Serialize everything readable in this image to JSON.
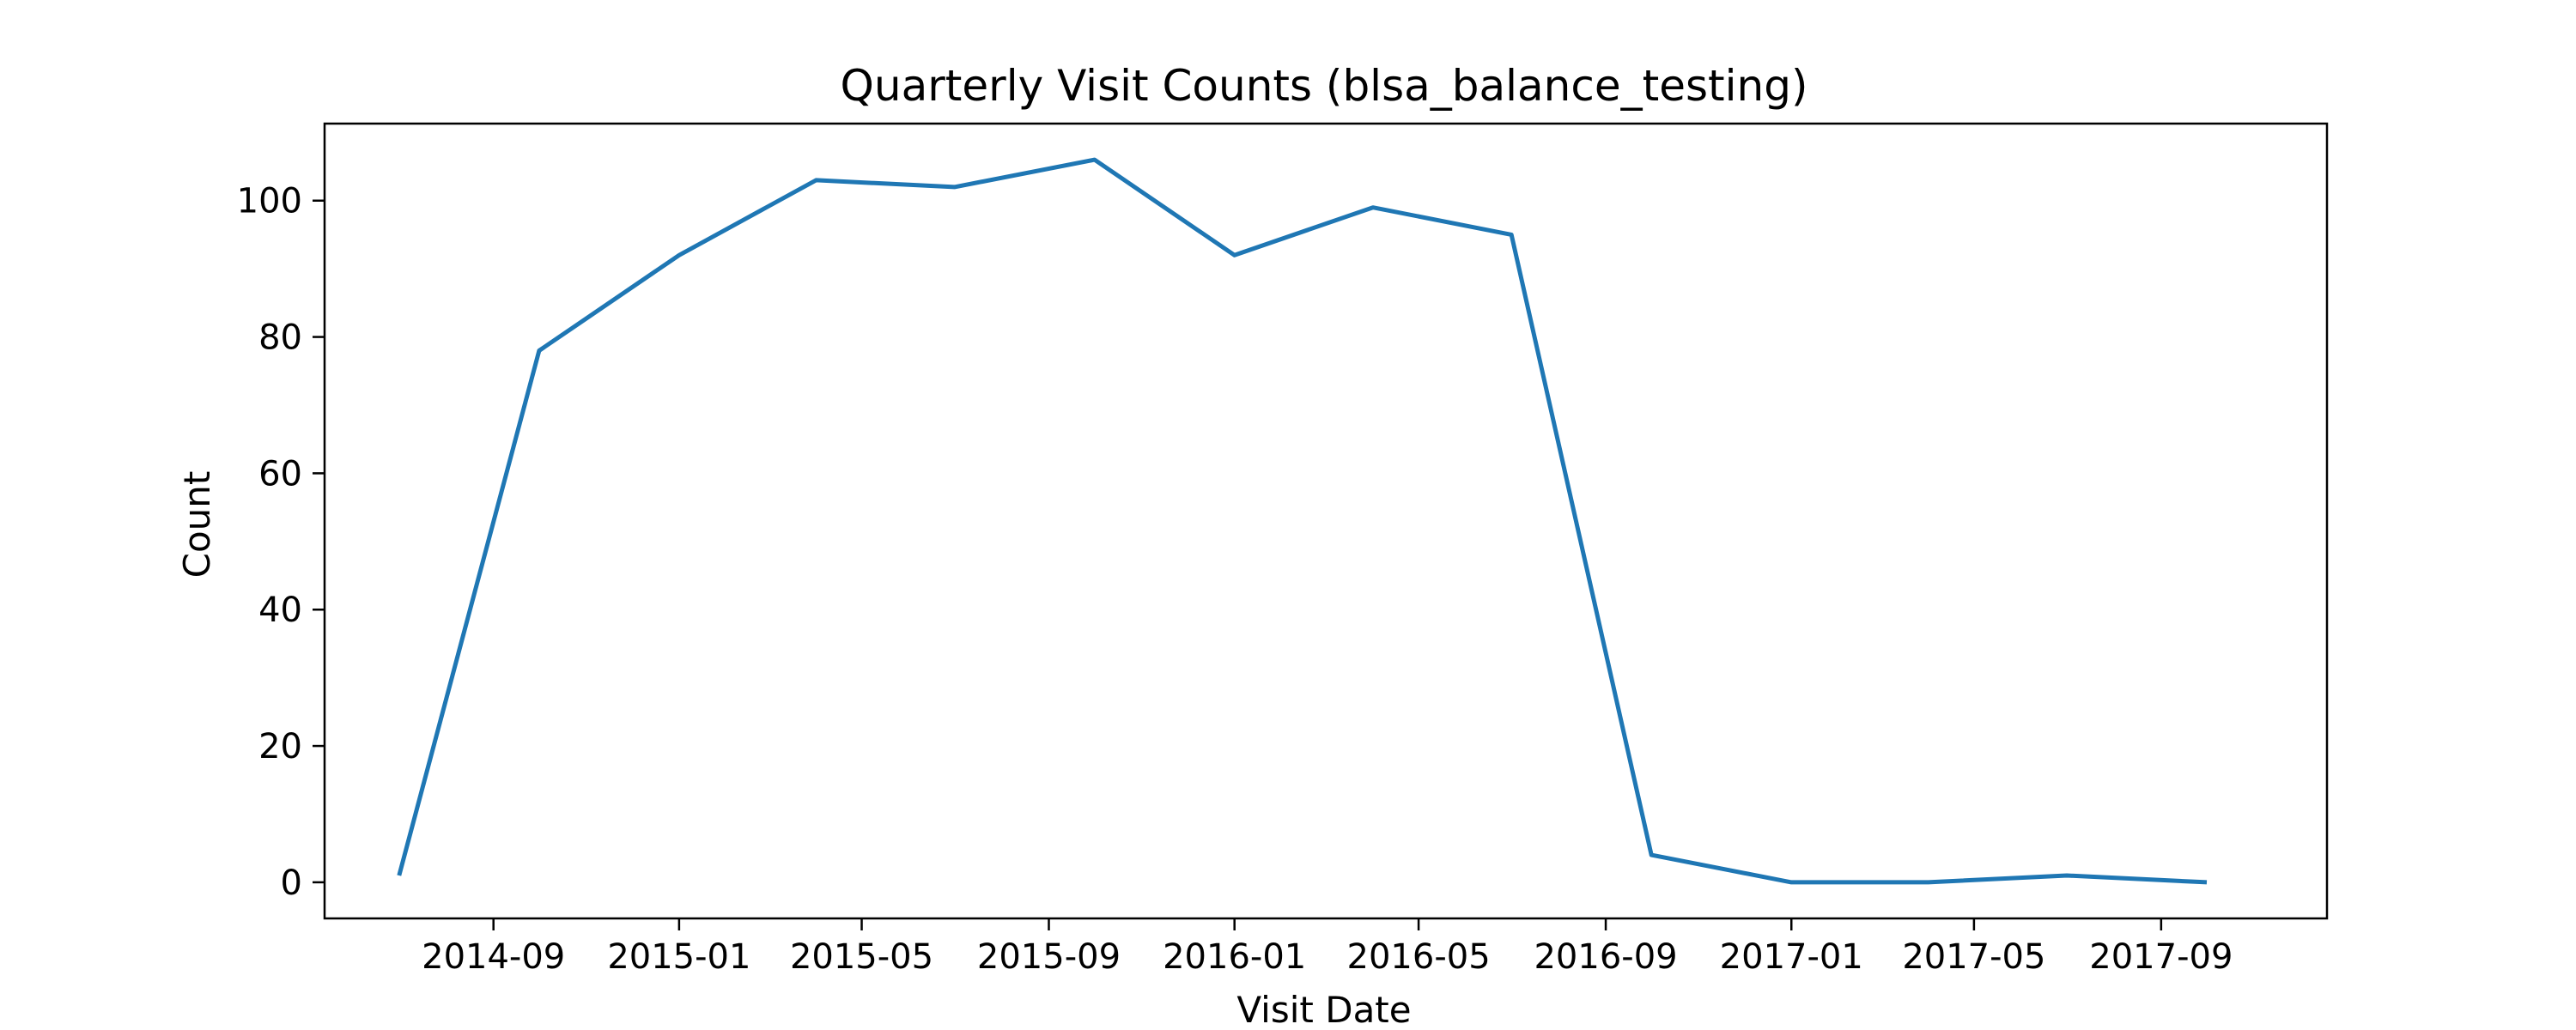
{
  "chart_data": {
    "type": "line",
    "title": "Quarterly Visit Counts (blsa_balance_testing)",
    "xlabel": "Visit Date",
    "ylabel": "Count",
    "x_is_date": true,
    "xlim": [
      "2014-05-13",
      "2017-12-19"
    ],
    "ylim": [
      -5.3,
      111.3
    ],
    "x_ticks": [
      {
        "date": "2014-09-01",
        "label": "2014-09"
      },
      {
        "date": "2015-01-01",
        "label": "2015-01"
      },
      {
        "date": "2015-05-01",
        "label": "2015-05"
      },
      {
        "date": "2015-09-01",
        "label": "2015-09"
      },
      {
        "date": "2016-01-01",
        "label": "2016-01"
      },
      {
        "date": "2016-05-01",
        "label": "2016-05"
      },
      {
        "date": "2016-09-01",
        "label": "2016-09"
      },
      {
        "date": "2017-01-01",
        "label": "2017-01"
      },
      {
        "date": "2017-05-01",
        "label": "2017-05"
      },
      {
        "date": "2017-09-01",
        "label": "2017-09"
      }
    ],
    "y_ticks": [
      {
        "value": 0,
        "label": "0"
      },
      {
        "value": 20,
        "label": "20"
      },
      {
        "value": 40,
        "label": "40"
      },
      {
        "value": 60,
        "label": "60"
      },
      {
        "value": 80,
        "label": "80"
      },
      {
        "value": 100,
        "label": "100"
      }
    ],
    "grid": false,
    "series": [
      {
        "color": "#1f77b4",
        "points": [
          {
            "x": "2014-07-01",
            "y": 1
          },
          {
            "x": "2014-10-01",
            "y": 78
          },
          {
            "x": "2015-01-01",
            "y": 92
          },
          {
            "x": "2015-04-01",
            "y": 103
          },
          {
            "x": "2015-07-01",
            "y": 102
          },
          {
            "x": "2015-10-01",
            "y": 106
          },
          {
            "x": "2016-01-01",
            "y": 92
          },
          {
            "x": "2016-04-01",
            "y": 99
          },
          {
            "x": "2016-07-01",
            "y": 95
          },
          {
            "x": "2016-10-01",
            "y": 4
          },
          {
            "x": "2017-01-01",
            "y": 0
          },
          {
            "x": "2017-04-01",
            "y": 0
          },
          {
            "x": "2017-07-01",
            "y": 1
          },
          {
            "x": "2017-10-01",
            "y": 0
          }
        ]
      }
    ]
  }
}
